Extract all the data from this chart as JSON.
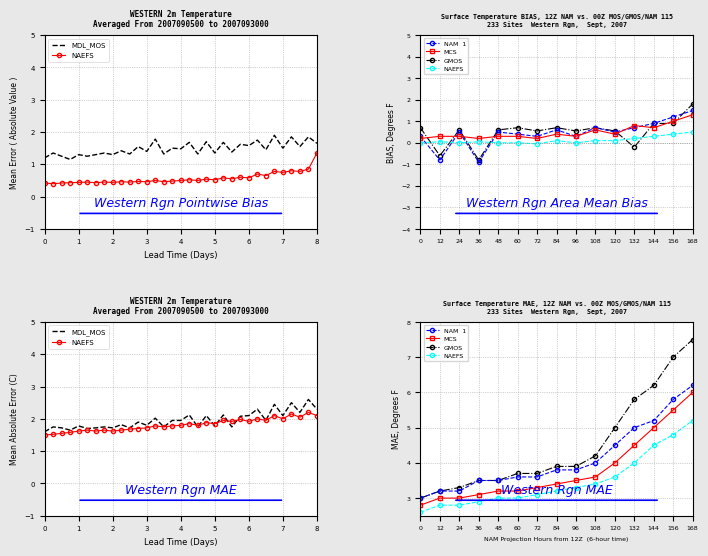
{
  "fig_width": 7.2,
  "fig_height": 5.4,
  "bg_color": "#e8e8e8",
  "panel_titles": [
    "WESTERN 2m Temperature\nAveraged From 2007090500 to 2007093000",
    "Surface Temperature BIAS, 12Z NAM vs. 00Z MOS/GMOS/NAM 115\n233 Sites  Western Rgn,  Sept, 2007",
    "WESTERN 2m Temperature\nAveraged From 2007090500 to 2007093000",
    "Surface Temperature MAE, 12Z NAM vs. 00Z MOS/GMOS/NAM 115\n233 Sites  Western Rgn,  Sept, 2007"
  ],
  "panel_xlabels": [
    "Lead Time (Days)",
    "",
    "Lead Time (Days)",
    "NAM Projection Hours from 12Z  (6-hour time)"
  ],
  "panel_ylabels": [
    "Mean Error ( Absolute Value )",
    "BIAS, Degrees F",
    "Mean Absolute Error (C)",
    "MAE, Degrees F"
  ],
  "panel_link_labels": [
    "Western Rgn Pointwise Bias",
    "Western Rgn Area Mean Bias",
    "Western Rgn MAE",
    "Western Rgn MAE"
  ],
  "p1_x": [
    0,
    0.25,
    0.5,
    0.75,
    1.0,
    1.25,
    1.5,
    1.75,
    2.0,
    2.25,
    2.5,
    2.75,
    3.0,
    3.25,
    3.5,
    3.75,
    4.0,
    4.25,
    4.5,
    4.75,
    5.0,
    5.25,
    5.5,
    5.75,
    6.0,
    6.25,
    6.5,
    6.75,
    7.0,
    7.25,
    7.5,
    7.75,
    8.0
  ],
  "p1_mdl": [
    1.2,
    1.35,
    1.25,
    1.15,
    1.3,
    1.25,
    1.3,
    1.35,
    1.3,
    1.42,
    1.32,
    1.55,
    1.4,
    1.78,
    1.32,
    1.5,
    1.48,
    1.68,
    1.32,
    1.7,
    1.35,
    1.68,
    1.38,
    1.62,
    1.58,
    1.75,
    1.45,
    1.9,
    1.5,
    1.85,
    1.55,
    1.85,
    1.65
  ],
  "p1_naefs": [
    0.42,
    0.4,
    0.42,
    0.43,
    0.44,
    0.45,
    0.43,
    0.45,
    0.44,
    0.46,
    0.45,
    0.47,
    0.46,
    0.5,
    0.46,
    0.48,
    0.5,
    0.52,
    0.5,
    0.54,
    0.52,
    0.58,
    0.55,
    0.6,
    0.58,
    0.7,
    0.65,
    0.78,
    0.75,
    0.8,
    0.78,
    0.85,
    1.35
  ],
  "p2_x": [
    0,
    12,
    24,
    36,
    48,
    60,
    72,
    84,
    96,
    108,
    120,
    132,
    144,
    156,
    168
  ],
  "p2_nam": [
    0.3,
    -0.8,
    0.5,
    -0.9,
    0.5,
    0.4,
    0.3,
    0.6,
    0.3,
    0.7,
    0.5,
    0.7,
    0.9,
    1.2,
    1.5
  ],
  "p2_mcs": [
    0.2,
    0.3,
    0.3,
    0.2,
    0.3,
    0.3,
    0.2,
    0.4,
    0.3,
    0.6,
    0.4,
    0.8,
    0.7,
    1.0,
    1.3
  ],
  "p2_gmos": [
    0.7,
    -0.6,
    0.6,
    -0.8,
    0.6,
    0.7,
    0.55,
    0.7,
    0.55,
    0.7,
    0.55,
    -0.2,
    0.9,
    0.9,
    1.8
  ],
  "p2_naefs": [
    0.0,
    0.05,
    0.0,
    0.05,
    0.0,
    0.0,
    -0.05,
    0.1,
    0.0,
    0.1,
    0.1,
    0.2,
    0.3,
    0.4,
    0.5
  ],
  "p3_x": [
    0,
    0.25,
    0.5,
    0.75,
    1.0,
    1.25,
    1.5,
    1.75,
    2.0,
    2.25,
    2.5,
    2.75,
    3.0,
    3.25,
    3.5,
    3.75,
    4.0,
    4.25,
    4.5,
    4.75,
    5.0,
    5.25,
    5.5,
    5.75,
    6.0,
    6.25,
    6.5,
    6.75,
    7.0,
    7.25,
    7.5,
    7.75,
    8.0
  ],
  "p3_mdl": [
    1.6,
    1.75,
    1.72,
    1.65,
    1.78,
    1.7,
    1.72,
    1.75,
    1.72,
    1.82,
    1.72,
    1.9,
    1.8,
    2.02,
    1.75,
    1.95,
    1.95,
    2.12,
    1.75,
    2.1,
    1.78,
    2.12,
    1.75,
    2.08,
    2.1,
    2.3,
    1.95,
    2.45,
    2.1,
    2.5,
    2.2,
    2.6,
    2.3
  ],
  "p3_naefs": [
    1.5,
    1.52,
    1.55,
    1.58,
    1.62,
    1.65,
    1.62,
    1.65,
    1.62,
    1.65,
    1.68,
    1.7,
    1.72,
    1.78,
    1.75,
    1.78,
    1.8,
    1.85,
    1.8,
    1.88,
    1.85,
    1.95,
    1.92,
    1.98,
    1.92,
    2.0,
    1.95,
    2.1,
    2.0,
    2.15,
    2.05,
    2.2,
    2.1
  ],
  "p4_x": [
    0,
    12,
    24,
    36,
    48,
    60,
    72,
    84,
    96,
    108,
    120,
    132,
    144,
    156,
    168
  ],
  "p4_nam": [
    3.0,
    3.2,
    3.2,
    3.5,
    3.5,
    3.6,
    3.6,
    3.8,
    3.8,
    4.0,
    4.5,
    5.0,
    5.2,
    5.8,
    6.2
  ],
  "p4_mcs": [
    2.8,
    3.0,
    3.0,
    3.1,
    3.2,
    3.2,
    3.3,
    3.4,
    3.5,
    3.6,
    4.0,
    4.5,
    5.0,
    5.5,
    6.0
  ],
  "p4_gmos": [
    3.0,
    3.2,
    3.3,
    3.5,
    3.5,
    3.7,
    3.7,
    3.9,
    3.9,
    4.2,
    5.0,
    5.8,
    6.2,
    7.0,
    7.5
  ],
  "p4_naefs": [
    2.6,
    2.8,
    2.8,
    2.9,
    3.0,
    3.0,
    3.1,
    3.2,
    3.3,
    3.4,
    3.6,
    4.0,
    4.5,
    4.8,
    5.2
  ]
}
